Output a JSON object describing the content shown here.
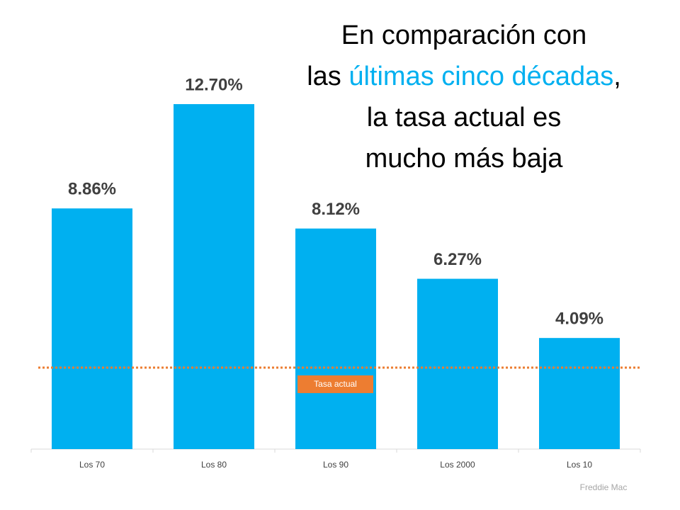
{
  "chart_data": {
    "type": "bar",
    "title_lines": [
      [
        {
          "text": "En comparación con"
        }
      ],
      [
        {
          "text": "las "
        },
        {
          "text": "últimas cinco décadas",
          "color": "#00b0f0"
        },
        {
          "text": ","
        }
      ],
      [
        {
          "text": "la tasa actual es"
        }
      ],
      [
        {
          "text": "mucho más baja"
        }
      ]
    ],
    "categories": [
      "Los 70",
      "Los 80",
      "Los 90",
      "Los 2000",
      "Los 10"
    ],
    "values": [
      8.86,
      12.7,
      8.12,
      6.27,
      4.09
    ],
    "value_labels": [
      "8.86%",
      "12.70%",
      "8.12%",
      "6.27%",
      "4.09%"
    ],
    "color": "#00b0f0",
    "ylim": [
      0,
      12.7
    ],
    "reference_line": {
      "value": 3.0,
      "label": "Tasa actual",
      "color": "#ed7d31"
    },
    "source": "Freddie Mac"
  }
}
